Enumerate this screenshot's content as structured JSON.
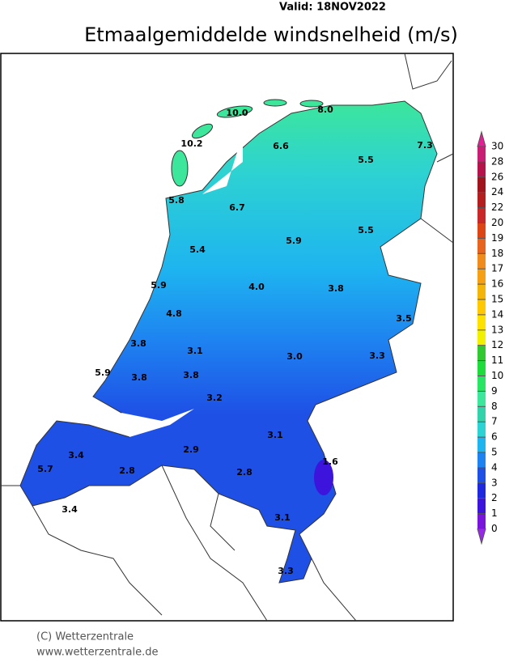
{
  "header": {
    "valid": "Valid:  18NOV2022",
    "title": "Etmaalgemiddelde windsnelheid (m/s)"
  },
  "stations": [
    "10.0",
    "8.0",
    "10.2",
    "6.6",
    "7.3",
    "5.5",
    "5.8",
    "6.7",
    "5.5",
    "5.9",
    "5.4",
    "5.9",
    "4.0",
    "3.8",
    "4.8",
    "3.5",
    "3.8",
    "3.1",
    "3.0",
    "3.3",
    "5.9",
    "3.8",
    "3.8",
    "3.2",
    "3.1",
    "2.9",
    "1.6",
    "3.4",
    "5.7",
    "2.8",
    "2.8",
    "3.4",
    "3.1",
    "3.3"
  ],
  "colorbar": {
    "ticks": [
      30,
      28,
      26,
      24,
      22,
      20,
      19,
      18,
      17,
      16,
      15,
      14,
      13,
      12,
      11,
      10,
      9,
      8,
      7,
      6,
      5,
      4,
      3,
      2,
      1,
      0
    ],
    "colors": [
      "#c81e74",
      "#b4144a",
      "#a0141e",
      "#b41e1e",
      "#c82828",
      "#dc4614",
      "#e6641e",
      "#f08c1e",
      "#f5a014",
      "#f5b40a",
      "#ffc800",
      "#ffe100",
      "#f0f000",
      "#32c832",
      "#1edc3c",
      "#28e664",
      "#3ce69b",
      "#32d2aa",
      "#2dd2d2",
      "#1eb4f0",
      "#1e82f0",
      "#1e50e6",
      "#1e28dc",
      "#3c14dc",
      "#7814dc"
    ]
  },
  "footer": {
    "copyright": "(C) Wetterzentrale",
    "url": "www.wetterzentrale.de"
  }
}
